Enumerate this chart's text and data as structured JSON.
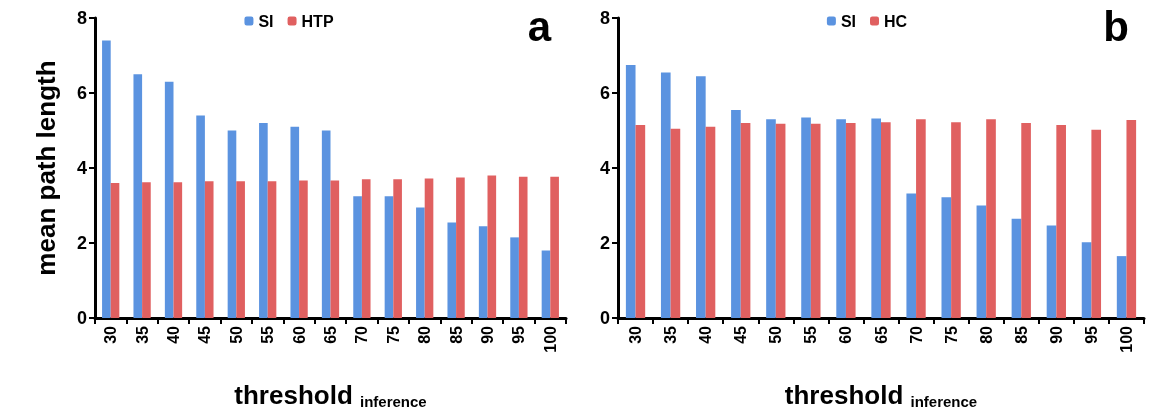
{
  "chart_data": [
    {
      "type": "bar",
      "title": "a",
      "ylabel": "mean path length",
      "xlabel": "threshold $_{inference}$",
      "categories": [
        "30",
        "35",
        "40",
        "45",
        "50",
        "55",
        "60",
        "65",
        "70",
        "75",
        "80",
        "85",
        "90",
        "95",
        "100"
      ],
      "series": [
        {
          "name": "SI",
          "color": "#5b93e0",
          "values": [
            7.4,
            6.5,
            6.3,
            5.4,
            5.0,
            5.2,
            5.1,
            5.0,
            3.25,
            3.25,
            2.95,
            2.55,
            2.45,
            2.15,
            1.8
          ]
        },
        {
          "name": "HTP",
          "color": "#e06060",
          "values": [
            3.6,
            3.62,
            3.62,
            3.65,
            3.65,
            3.65,
            3.67,
            3.67,
            3.7,
            3.7,
            3.72,
            3.75,
            3.8,
            3.77,
            3.77
          ]
        }
      ],
      "ylim": [
        0,
        8
      ],
      "yticks": [
        0,
        2,
        4,
        6,
        8
      ],
      "grid": false,
      "legend": "top"
    },
    {
      "type": "bar",
      "title": "b",
      "xlabel": "threshold $_{inference}$",
      "categories": [
        "30",
        "35",
        "40",
        "45",
        "50",
        "55",
        "60",
        "65",
        "70",
        "75",
        "80",
        "85",
        "90",
        "95",
        "100"
      ],
      "series": [
        {
          "name": "SI",
          "color": "#5b93e0",
          "values": [
            6.75,
            6.55,
            6.45,
            5.55,
            5.3,
            5.35,
            5.3,
            5.32,
            3.32,
            3.22,
            3.0,
            2.65,
            2.47,
            2.02,
            1.65
          ]
        },
        {
          "name": "HC",
          "color": "#e06060",
          "values": [
            5.15,
            5.05,
            5.1,
            5.2,
            5.18,
            5.18,
            5.2,
            5.22,
            5.3,
            5.22,
            5.3,
            5.2,
            5.15,
            5.02,
            5.28
          ]
        }
      ],
      "ylim": [
        0,
        8
      ],
      "yticks": [
        0,
        2,
        4,
        6,
        8
      ],
      "grid": false,
      "legend": "top"
    }
  ]
}
